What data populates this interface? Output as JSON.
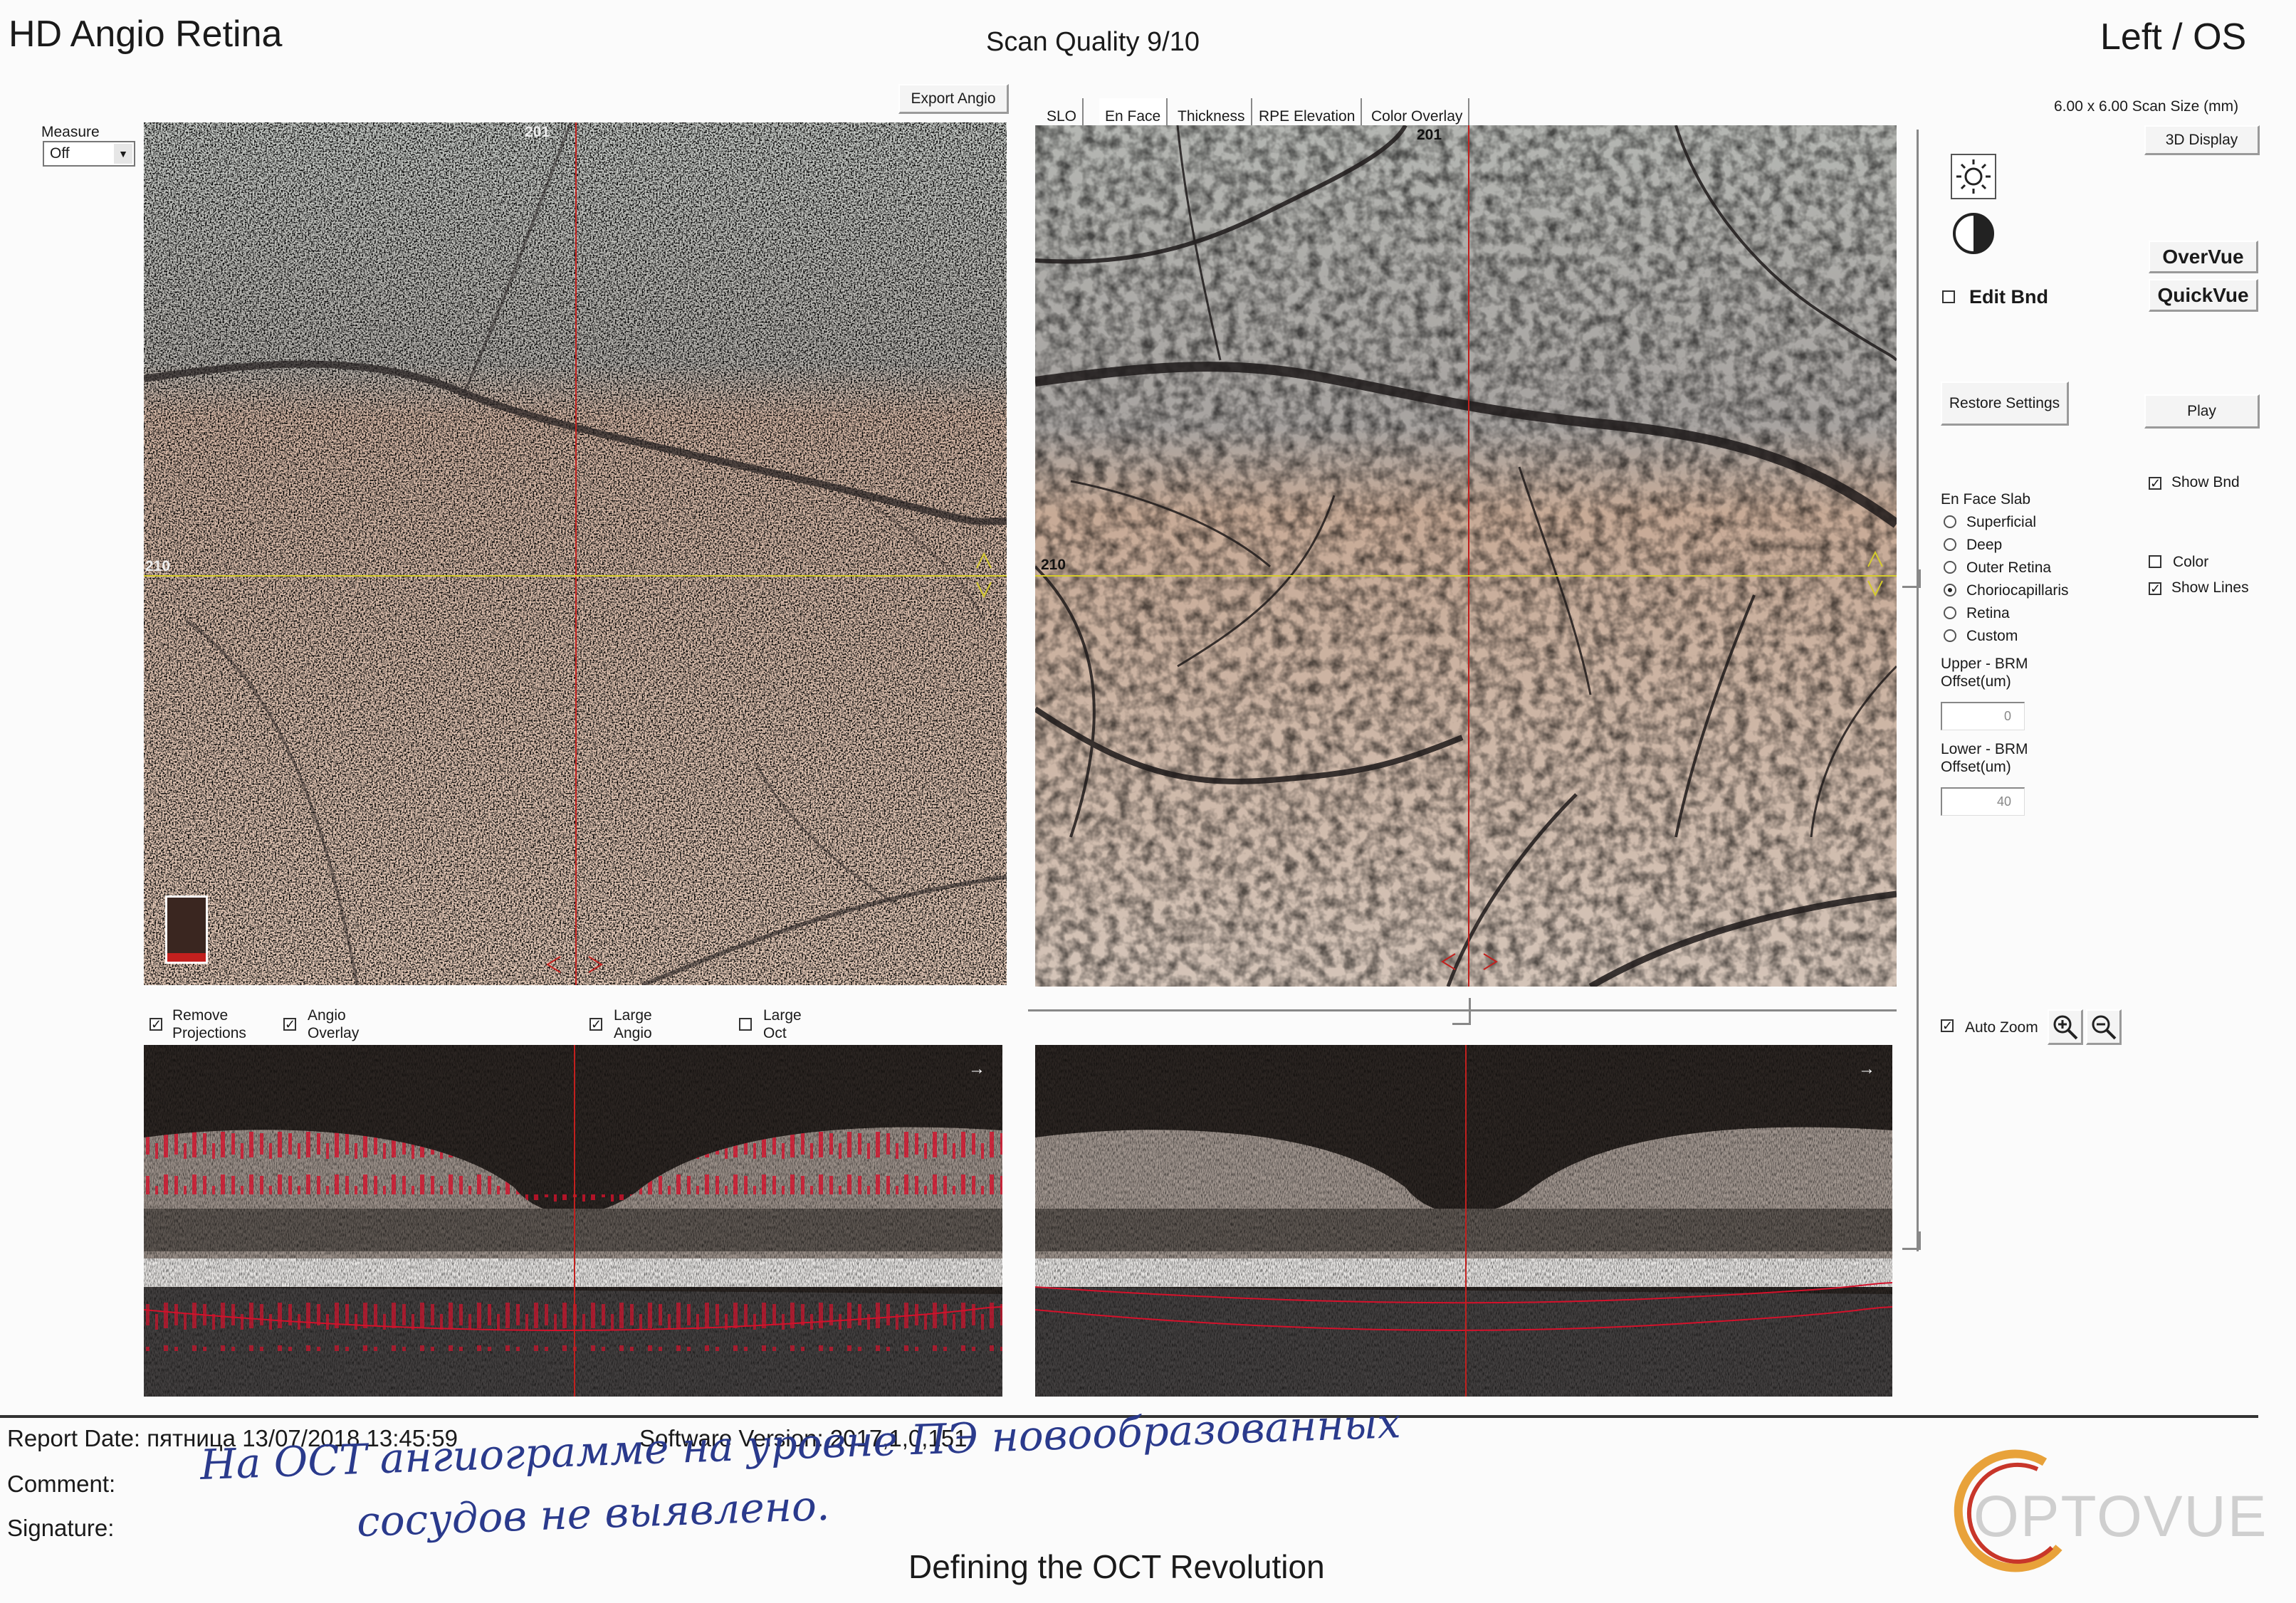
{
  "header": {
    "app_title": "HD Angio Retina",
    "scan_quality": "Scan Quality 9/10",
    "eye": "Left / OS"
  },
  "left_panel": {
    "measure_label": "Measure",
    "measure_value": "Off",
    "export_button": "Export Angio",
    "slice_top_label": "201",
    "slice_side_label": "210",
    "checkboxes": [
      {
        "label1": "Remove",
        "label2": "Projections",
        "checked": true
      },
      {
        "label1": "Angio",
        "label2": "Overlay",
        "checked": true
      },
      {
        "label1": "Large",
        "label2": "Angio",
        "checked": true
      },
      {
        "label1": "Large",
        "label2": "Oct",
        "checked": false
      }
    ]
  },
  "tabs": [
    {
      "label": "SLO"
    },
    {
      "label": "En Face"
    },
    {
      "label": "Thickness"
    },
    {
      "label": "RPE Elevation"
    },
    {
      "label": "Color Overlay"
    }
  ],
  "right_image": {
    "slice_top_label": "201",
    "slice_side_label": "210"
  },
  "controls": {
    "scan_size": "6.00 x 6.00 Scan Size (mm)",
    "display_3d": "3D Display",
    "overvue": "OverVue",
    "quickvue": "QuickVue",
    "edit_bnd": "Edit Bnd",
    "restore_settings": "Restore Settings",
    "play": "Play",
    "show_bnd": "Show Bnd",
    "en_face_slab": "En Face Slab",
    "slab_options": [
      {
        "label": "Superficial",
        "selected": false
      },
      {
        "label": "Deep",
        "selected": false
      },
      {
        "label": "Outer Retina",
        "selected": false
      },
      {
        "label": "Choriocapillaris",
        "selected": true
      },
      {
        "label": "Retina",
        "selected": false
      },
      {
        "label": "Custom",
        "selected": false
      }
    ],
    "color": "Color",
    "show_lines": "Show Lines",
    "upper_label1": "Upper - BRM",
    "upper_label2": "Offset(um)",
    "upper_value": "0",
    "lower_label1": "Lower - BRM",
    "lower_label2": "Offset(um)",
    "lower_value": "40",
    "auto_zoom": "Auto Zoom"
  },
  "footer": {
    "report_date": "Report Date: пятница 13/07/2018 13:45:59",
    "software_version": "Software Version: 2017,1,0,151",
    "comment_label": "Comment:",
    "signature_label": "Signature:",
    "comment_line1": "На ОСТ ангиограмме на уровне ПЭ новообразованных",
    "comment_line2": "сосудов не выявлено.",
    "tagline": "Defining the OCT Revolution",
    "logo_text": "OPTOVUE"
  },
  "colors": {
    "accent_red": "#c2201e",
    "crosshair_yellow": "#d6cc2c",
    "logo_orange": "#e8a23a",
    "logo_red": "#c8362a"
  }
}
